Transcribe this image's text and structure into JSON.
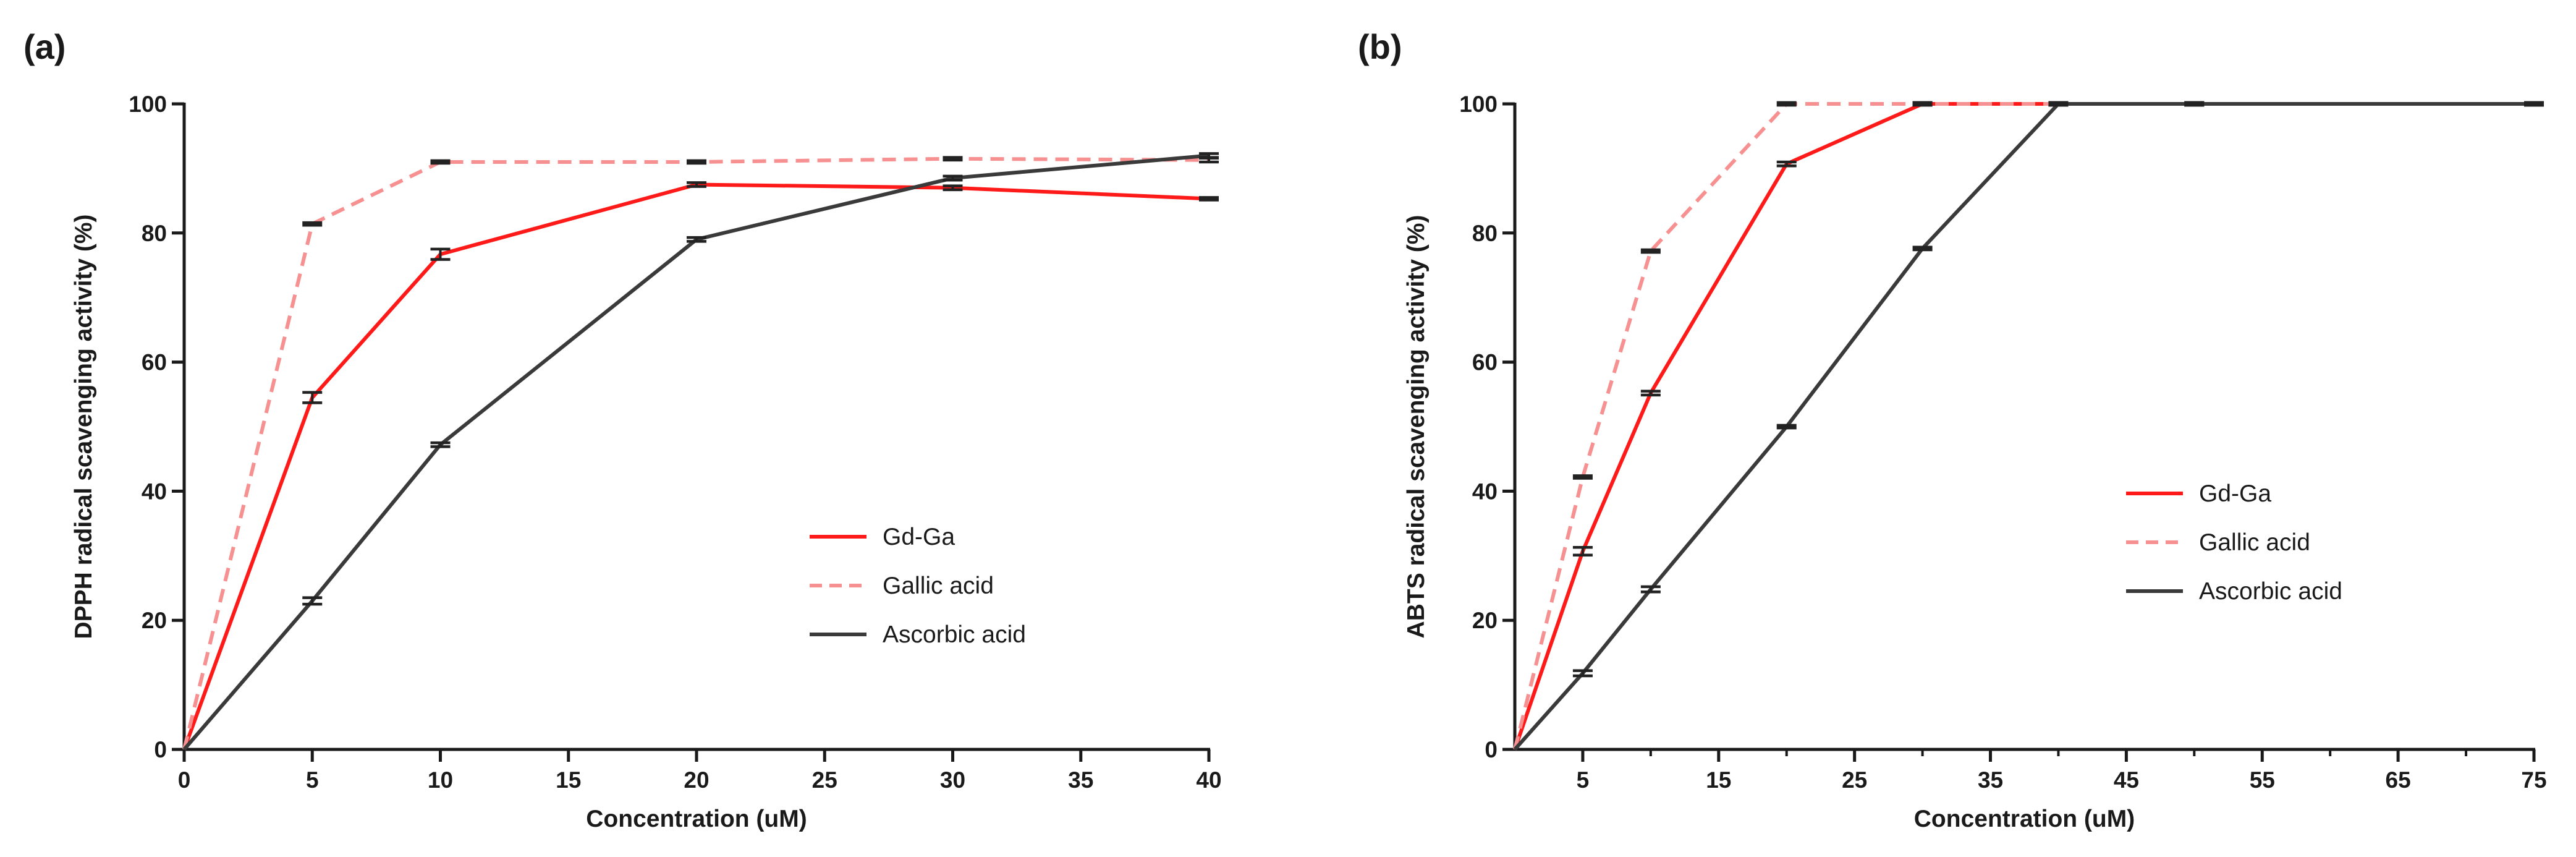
{
  "chart_data": [
    {
      "type": "line",
      "panel_label": "(a)",
      "xlabel": "Concentration (uM)",
      "ylabel": "DPPH radical scavenging activity (%)",
      "xlim": [
        0,
        40
      ],
      "ylim": [
        0,
        100
      ],
      "xticks": [
        0,
        5,
        10,
        15,
        20,
        25,
        30,
        35,
        40
      ],
      "xtick_labels": [
        "0",
        "5",
        "10",
        "15",
        "20",
        "25",
        "30",
        "35",
        "40"
      ],
      "yticks": [
        0,
        20,
        40,
        60,
        80,
        100
      ],
      "ytick_labels": [
        "0",
        "20",
        "40",
        "60",
        "80",
        "100"
      ],
      "minor_xticks": [],
      "legend_position": "lower-right",
      "series": [
        {
          "name": "Gd-Ga",
          "color": "#ff1a1a",
          "dash": "solid",
          "x": [
            0,
            5,
            10,
            20,
            30,
            40
          ],
          "y": [
            0,
            54.5,
            76.7,
            87.5,
            87.0,
            85.3
          ],
          "err": [
            0,
            0.8,
            0.8,
            0.3,
            0.3,
            0.2
          ]
        },
        {
          "name": "Gallic acid",
          "color": "#f79090",
          "dash": "dashed",
          "x": [
            0,
            5,
            10,
            20,
            30,
            40
          ],
          "y": [
            0,
            81.4,
            91.0,
            91.0,
            91.5,
            91.3
          ],
          "err": [
            0,
            0.2,
            0.2,
            0.2,
            0.2,
            0.3
          ]
        },
        {
          "name": "Ascorbic acid",
          "color": "#3a3a3a",
          "dash": "solid",
          "x": [
            0,
            5,
            10,
            20,
            30,
            40
          ],
          "y": [
            0,
            23.0,
            47.2,
            79.0,
            88.5,
            92.0
          ],
          "err": [
            0,
            0.5,
            0.3,
            0.3,
            0.3,
            0.3
          ]
        }
      ]
    },
    {
      "type": "line",
      "panel_label": "(b)",
      "xlabel": "Concentration (uM)",
      "ylabel": "ABTS radical scavenging activity (%)",
      "xlim": [
        0,
        75
      ],
      "ylim": [
        0,
        100
      ],
      "xticks": [
        5,
        15,
        25,
        35,
        45,
        55,
        65,
        75
      ],
      "xtick_labels": [
        "5",
        "15",
        "25",
        "35",
        "45",
        "55",
        "65",
        "75"
      ],
      "yticks": [
        0,
        20,
        40,
        60,
        80,
        100
      ],
      "ytick_labels": [
        "0",
        "20",
        "40",
        "60",
        "80",
        "100"
      ],
      "minor_xticks": [
        10,
        20,
        30,
        40,
        50,
        60,
        70
      ],
      "legend_position": "lower-right",
      "series": [
        {
          "name": "Gd-Ga",
          "color": "#ff1a1a",
          "dash": "solid",
          "x": [
            0,
            5,
            10,
            20,
            30,
            40,
            50,
            75
          ],
          "y": [
            0,
            30.7,
            55.2,
            90.7,
            100,
            100,
            100,
            100
          ],
          "err": [
            0,
            0.6,
            0.3,
            0.3,
            0.2,
            0.2,
            0.2,
            0.2
          ]
        },
        {
          "name": "Gallic acid",
          "color": "#f79090",
          "dash": "dashed",
          "x": [
            0,
            5,
            10,
            20,
            30,
            40,
            50,
            75
          ],
          "y": [
            0,
            42.2,
            77.2,
            100,
            100,
            100,
            100,
            100
          ],
          "err": [
            0,
            0.2,
            0.2,
            0.2,
            0.2,
            0.2,
            0.2,
            0.2
          ]
        },
        {
          "name": "Ascorbic acid",
          "color": "#3a3a3a",
          "dash": "solid",
          "x": [
            0,
            5,
            10,
            20,
            30,
            40,
            50,
            75
          ],
          "y": [
            0,
            11.8,
            24.8,
            50.0,
            77.6,
            100,
            100,
            100
          ],
          "err": [
            0,
            0.4,
            0.4,
            0.2,
            0.2,
            0.2,
            0.2,
            0.2
          ]
        }
      ]
    }
  ]
}
